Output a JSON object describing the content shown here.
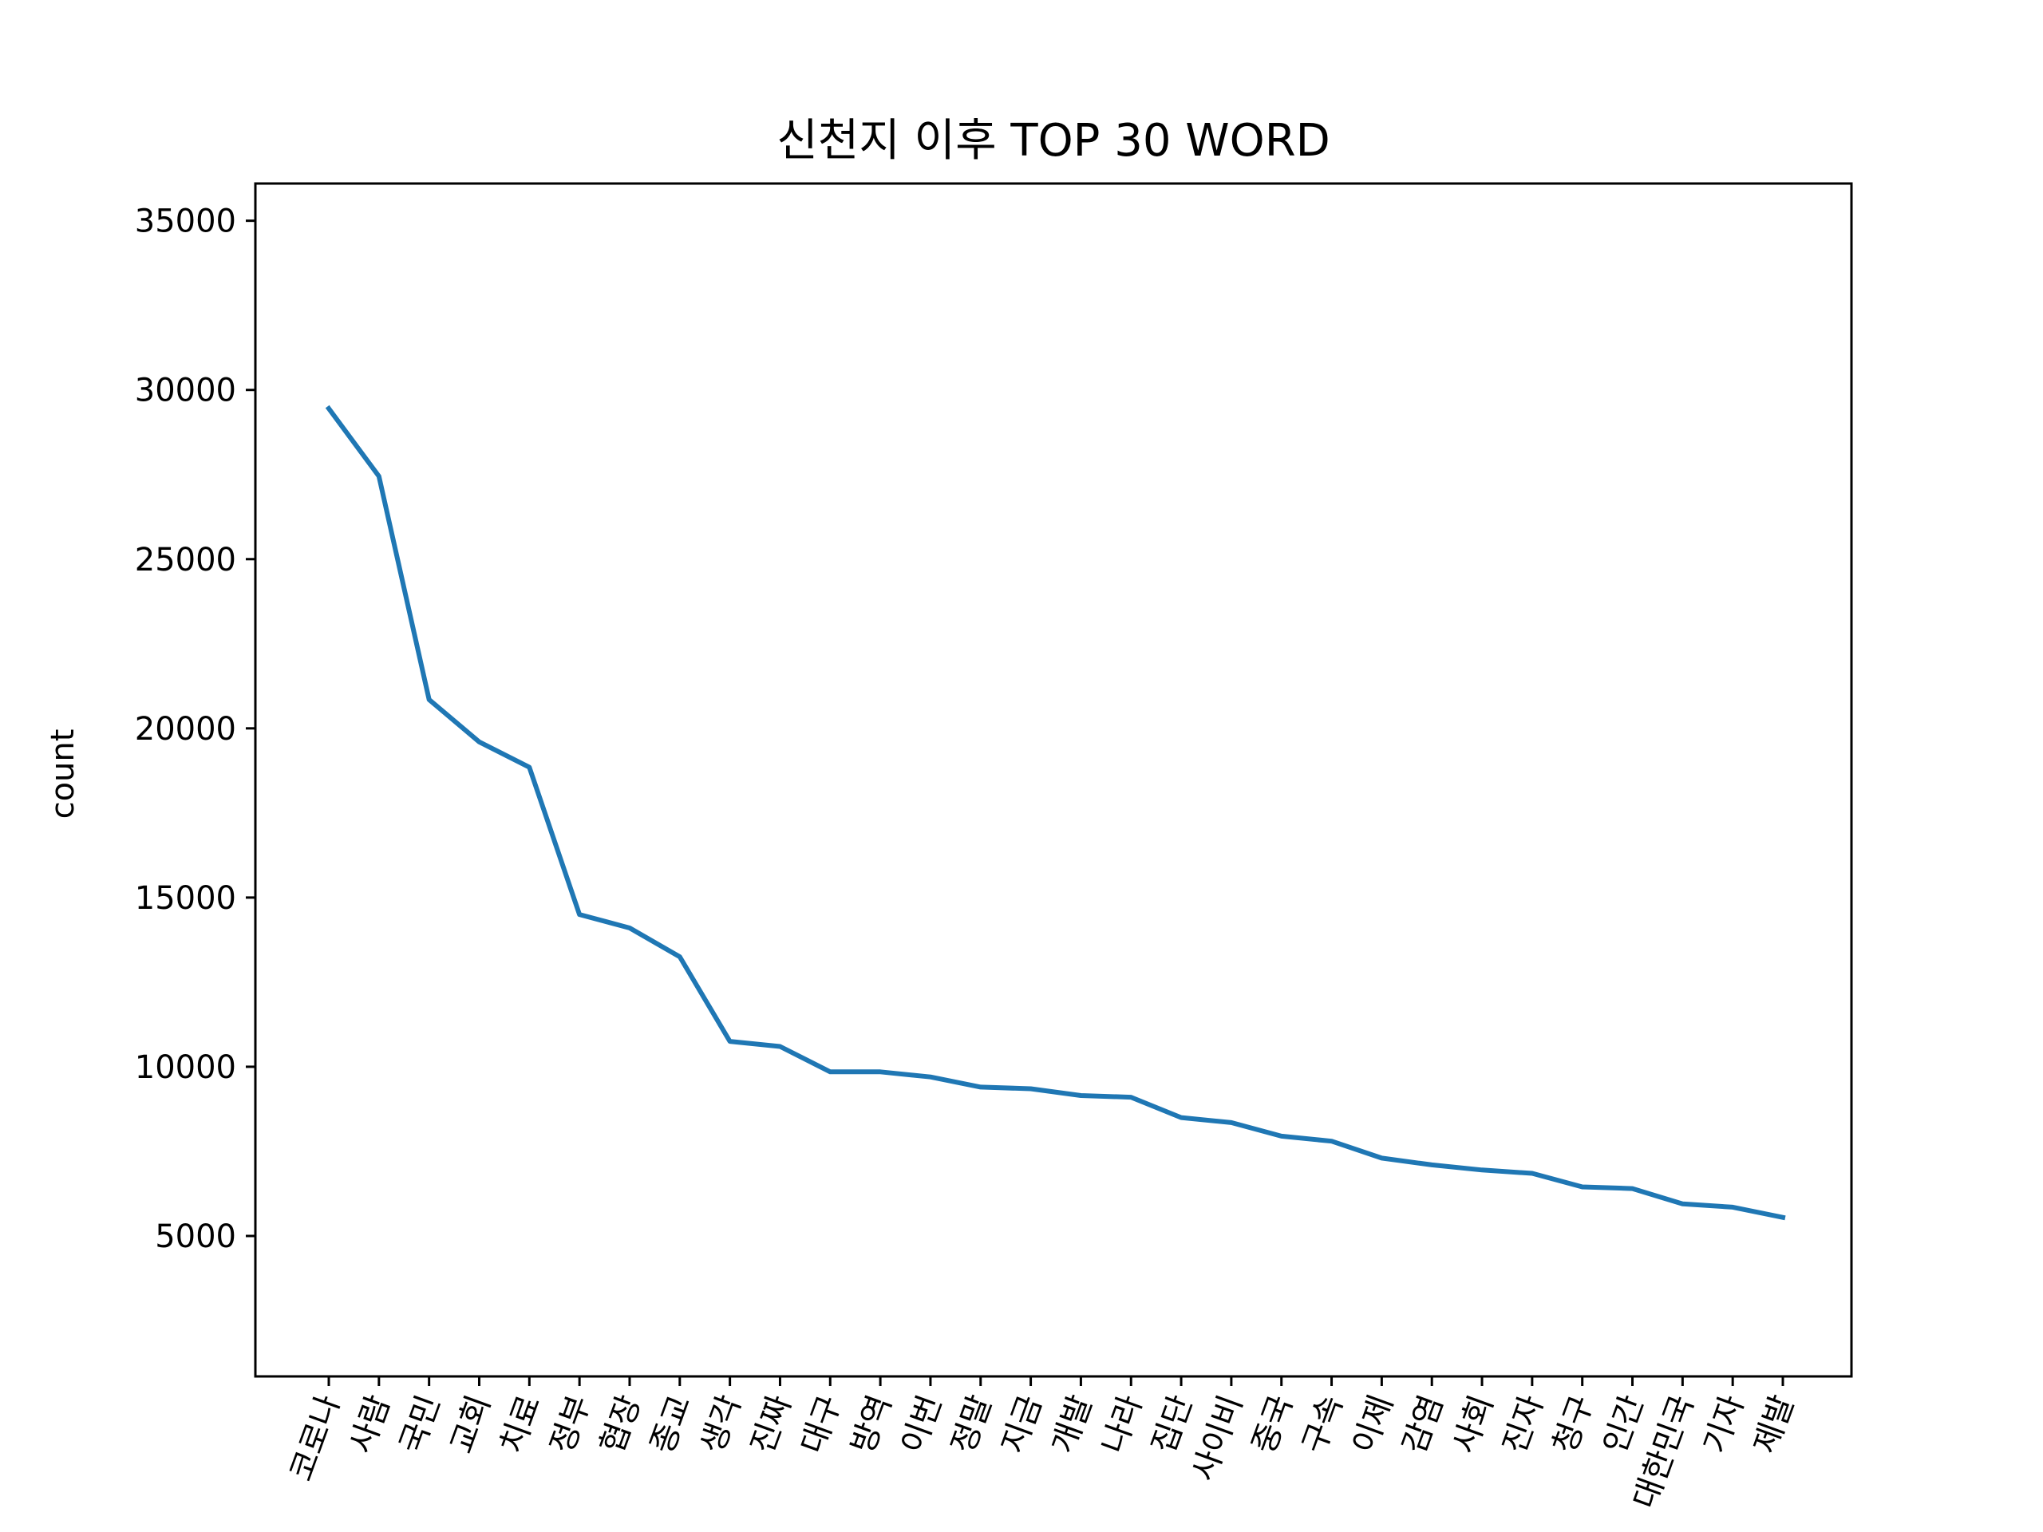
{
  "chart_data": {
    "type": "line",
    "title": "신천지 이후 TOP 30 WORD",
    "xlabel": "",
    "ylabel": "count",
    "categories": [
      "코로나",
      "사람",
      "국민",
      "교회",
      "치료",
      "정부",
      "협장",
      "종교",
      "생각",
      "진짜",
      "대구",
      "방역",
      "이번",
      "정말",
      "지금",
      "개발",
      "나라",
      "집단",
      "사이비",
      "중국",
      "구속",
      "이제",
      "감염",
      "사회",
      "진자",
      "청구",
      "인간",
      "대한민국",
      "기자",
      "제발"
    ],
    "series": [
      {
        "values": [
          29450,
          27450,
          20850,
          19600,
          18850,
          14500,
          14100,
          13250,
          10750,
          10600,
          9850,
          9850,
          9700,
          9400,
          9350,
          9150,
          9100,
          8500,
          8350,
          7950,
          7800,
          7300,
          7100,
          6950,
          6850,
          6450,
          6400,
          5950,
          5850,
          5550
        ],
        "color": "#1f77b4"
      }
    ],
    "ylim": [
      850,
      36100
    ],
    "yticks": [
      5000,
      10000,
      15000,
      20000,
      25000,
      30000,
      35000
    ],
    "ytick_labels": [
      "5000",
      "10000",
      "15000",
      "20000",
      "25000",
      "30000",
      "35000"
    ],
    "grid": false,
    "legend": "none"
  }
}
